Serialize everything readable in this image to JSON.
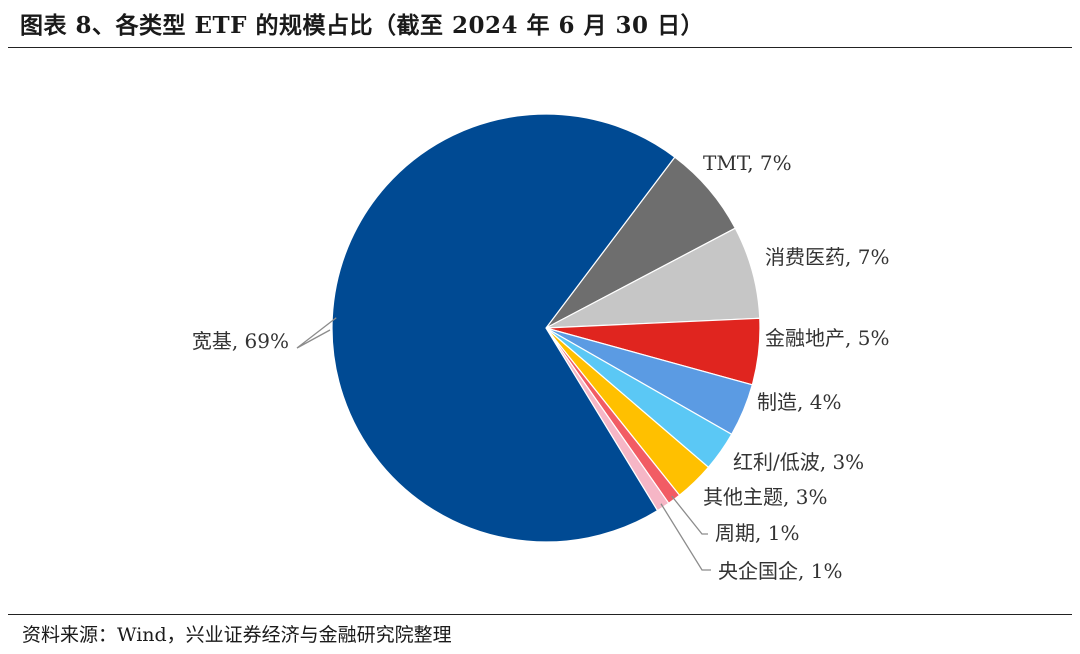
{
  "title": "图表 8、各类型 ETF 的规模占比（截至 2024 年 6 月 30 日）",
  "source": "资料来源：Wind，兴业证券经济与金融研究院整理",
  "chart_data": {
    "type": "pie",
    "start_slice": "TMT",
    "direction": "clockwise",
    "slices": [
      {
        "name": "TMT",
        "value": 7,
        "label": "TMT, 7%",
        "color": "#6e6e6e"
      },
      {
        "name": "消费医药",
        "value": 7,
        "label": "消费医药, 7%",
        "color": "#c6c6c6"
      },
      {
        "name": "金融地产",
        "value": 5,
        "label": "金融地产, 5%",
        "color": "#e0251f"
      },
      {
        "name": "制造",
        "value": 4,
        "label": "制造, 4%",
        "color": "#5b9be3"
      },
      {
        "name": "红利/低波",
        "value": 3,
        "label": "红利/低波, 3%",
        "color": "#5bc8f5"
      },
      {
        "name": "其他主题",
        "value": 3,
        "label": "其他主题, 3%",
        "color": "#ffc000"
      },
      {
        "name": "周期",
        "value": 1,
        "label": "周期, 1%",
        "color": "#f25c64"
      },
      {
        "name": "央企国企",
        "value": 1,
        "label": "央企国企, 1%",
        "color": "#f6b6c6"
      },
      {
        "name": "宽基",
        "value": 69,
        "label": "宽基, 69%",
        "color": "#004a93"
      }
    ]
  }
}
